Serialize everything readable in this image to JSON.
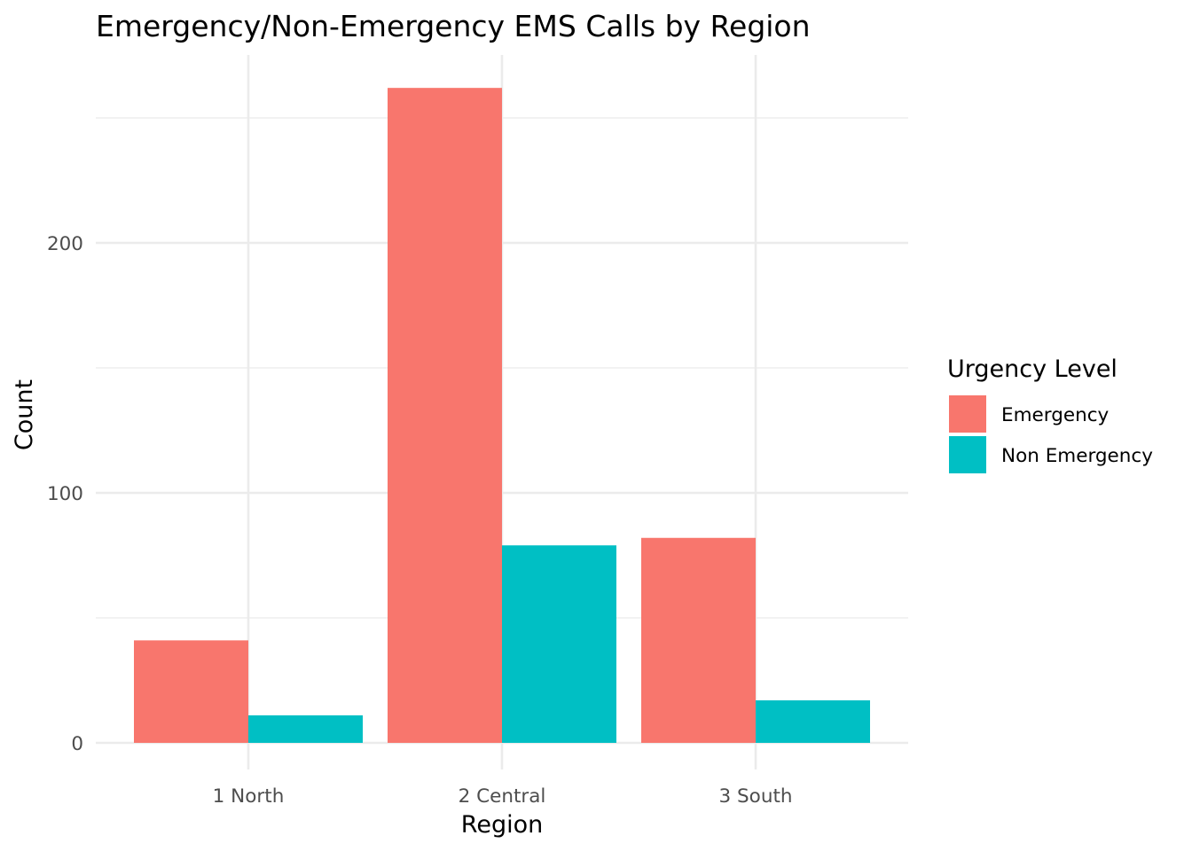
{
  "chart_data": {
    "type": "bar",
    "title": "Emergency/Non-Emergency EMS Calls by Region",
    "xlabel": "Region",
    "ylabel": "Count",
    "categories": [
      "1 North",
      "2 Central",
      "3 South"
    ],
    "series": [
      {
        "name": "Emergency",
        "color": "#F8766D",
        "values": [
          41,
          262,
          82
        ]
      },
      {
        "name": "Non Emergency",
        "color": "#00BFC4",
        "values": [
          11,
          79,
          17
        ]
      }
    ],
    "y_ticks": [
      0,
      100,
      200
    ],
    "y_tick_labels": [
      "0",
      "100",
      "200"
    ],
    "ylim": [
      -11,
      275
    ],
    "grid": true,
    "legend": {
      "title": "Urgency Level",
      "position": "right"
    }
  }
}
